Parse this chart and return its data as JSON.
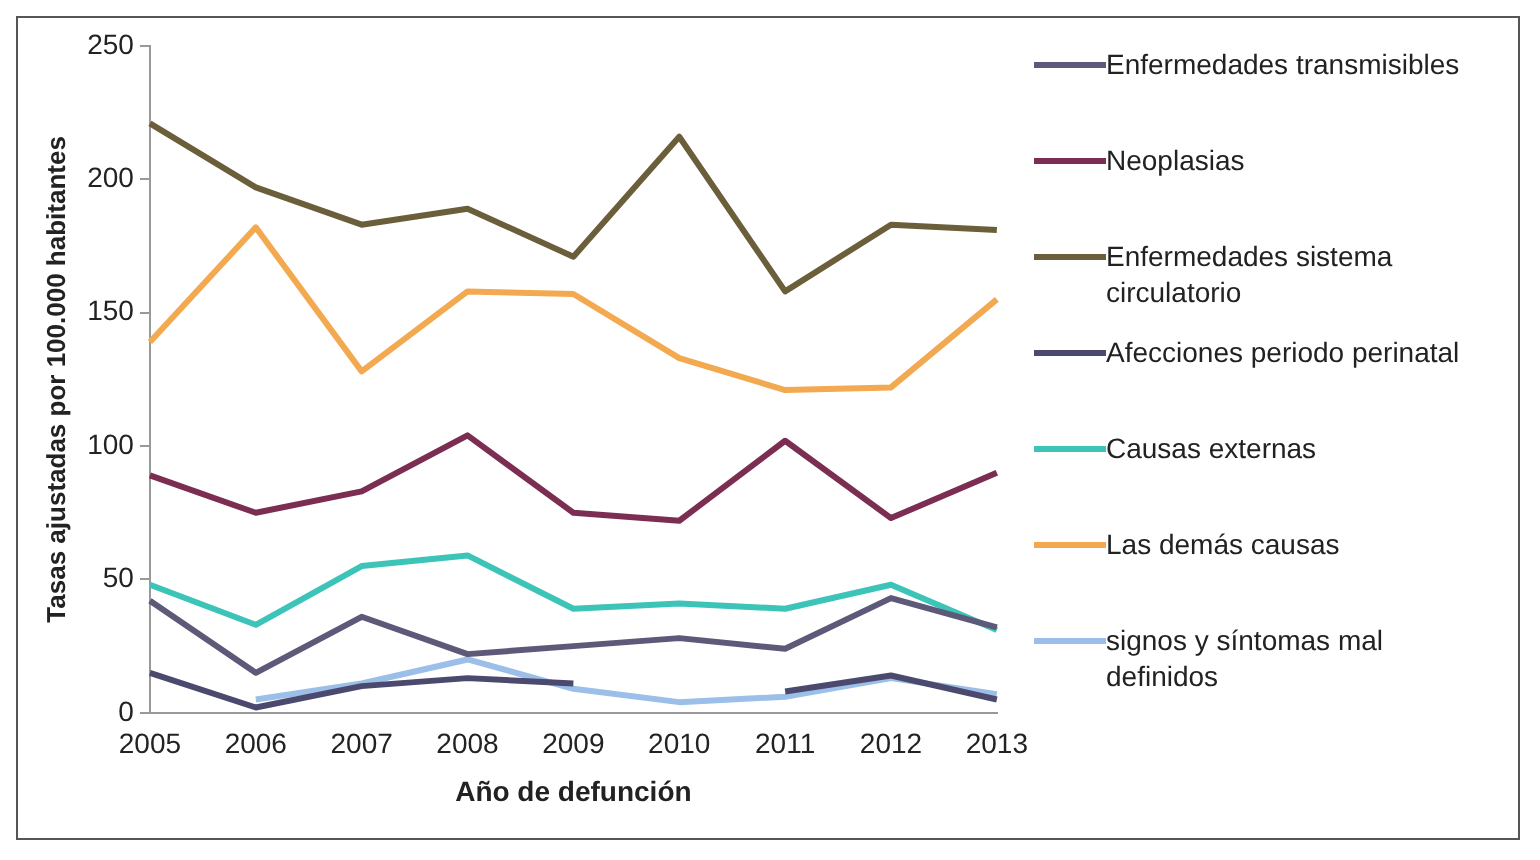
{
  "chart_data": {
    "type": "line",
    "xlabel": "Año de defunción",
    "ylabel": "Tasas ajustadas por 100.000 habitantes",
    "categories": [
      "2005",
      "2006",
      "2007",
      "2008",
      "2009",
      "2010",
      "2011",
      "2012",
      "2013"
    ],
    "ylim": [
      0,
      250
    ],
    "yticks": [
      0,
      50,
      100,
      150,
      200,
      250
    ],
    "grid": false,
    "legend": "right",
    "marker": "none",
    "series": [
      {
        "name": "Enfermedades transmisibles",
        "color": "#5c5a78",
        "values": [
          42,
          15,
          36,
          22,
          25,
          28,
          24,
          43,
          32
        ]
      },
      {
        "name": "Neoplasias",
        "color": "#7b2d52",
        "values": [
          89,
          75,
          83,
          104,
          75,
          72,
          102,
          73,
          90
        ]
      },
      {
        "name": "Enfermedades sistema circulatorio",
        "color": "#6b5e3a",
        "values": [
          221,
          197,
          183,
          189,
          171,
          216,
          158,
          183,
          181
        ]
      },
      {
        "name": "Afecciones periodo perinatal",
        "color": "#4b4a6e",
        "values": [
          15,
          2,
          10,
          13,
          11,
          null,
          8,
          14,
          5
        ]
      },
      {
        "name": "Causas externas",
        "color": "#3cc4b8",
        "values": [
          48,
          33,
          55,
          59,
          39,
          41,
          39,
          48,
          31
        ]
      },
      {
        "name": "Las demás causas",
        "color": "#f2a950",
        "values": [
          139,
          182,
          128,
          158,
          157,
          133,
          121,
          122,
          155
        ]
      },
      {
        "name": "signos y síntomas mal definidos",
        "color": "#9bbfe8",
        "values": [
          null,
          5,
          11,
          20,
          9,
          4,
          6,
          13,
          7
        ]
      }
    ]
  }
}
